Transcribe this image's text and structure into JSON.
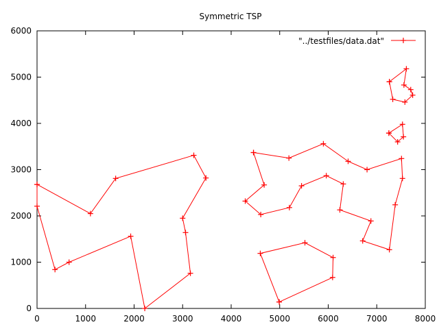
{
  "chart_data": {
    "type": "line",
    "title": "Symmetric TSP",
    "xlabel": "",
    "ylabel": "",
    "xlim": [
      0,
      8000
    ],
    "ylim": [
      0,
      6000
    ],
    "xticks": [
      0,
      1000,
      2000,
      3000,
      4000,
      5000,
      6000,
      7000,
      8000
    ],
    "yticks": [
      0,
      1000,
      2000,
      3000,
      4000,
      5000,
      6000
    ],
    "grid": false,
    "legend_position": "top-right",
    "color": "#ff0000",
    "marker": "plus",
    "series": [
      {
        "name": "\"../testfiles/data.dat\"",
        "points": [
          [
            0,
            2680
          ],
          [
            0,
            2210
          ],
          [
            370,
            840
          ],
          [
            660,
            1000
          ],
          [
            1930,
            1560
          ],
          [
            2220,
            0
          ],
          [
            3160,
            760
          ],
          [
            3060,
            1640
          ],
          [
            3000,
            1950
          ],
          [
            3480,
            2820
          ],
          [
            3230,
            3310
          ],
          [
            1620,
            2810
          ],
          [
            1100,
            2050
          ],
          [
            0,
            2680
          ]
        ]
      },
      {
        "name": "",
        "points": [
          [
            4460,
            3370
          ],
          [
            4680,
            2670
          ],
          [
            4290,
            2320
          ],
          [
            4610,
            2030
          ],
          [
            5200,
            2180
          ],
          [
            5450,
            2650
          ],
          [
            5960,
            2870
          ],
          [
            6310,
            2690
          ],
          [
            6240,
            2130
          ],
          [
            6880,
            1890
          ],
          [
            6710,
            1460
          ],
          [
            7260,
            1270
          ],
          [
            7380,
            2240
          ],
          [
            7530,
            2810
          ],
          [
            7510,
            3240
          ],
          [
            6800,
            3000
          ],
          [
            6410,
            3180
          ],
          [
            5900,
            3560
          ],
          [
            5190,
            3250
          ],
          [
            4460,
            3370
          ]
        ]
      },
      {
        "name": "",
        "points": [
          [
            4990,
            140
          ],
          [
            6090,
            670
          ],
          [
            6100,
            1100
          ],
          [
            5520,
            1420
          ],
          [
            4600,
            1190
          ],
          [
            4990,
            140
          ]
        ]
      },
      {
        "name": "",
        "points": [
          [
            7250,
            3790
          ],
          [
            7530,
            3980
          ],
          [
            7550,
            3710
          ],
          [
            7430,
            3600
          ],
          [
            7250,
            3790
          ]
        ]
      },
      {
        "name": "",
        "points": [
          [
            7260,
            4900
          ],
          [
            7610,
            5180
          ],
          [
            7560,
            4830
          ],
          [
            7700,
            4730
          ],
          [
            7740,
            4610
          ],
          [
            7580,
            4460
          ],
          [
            7330,
            4520
          ],
          [
            7260,
            4900
          ]
        ]
      }
    ]
  }
}
